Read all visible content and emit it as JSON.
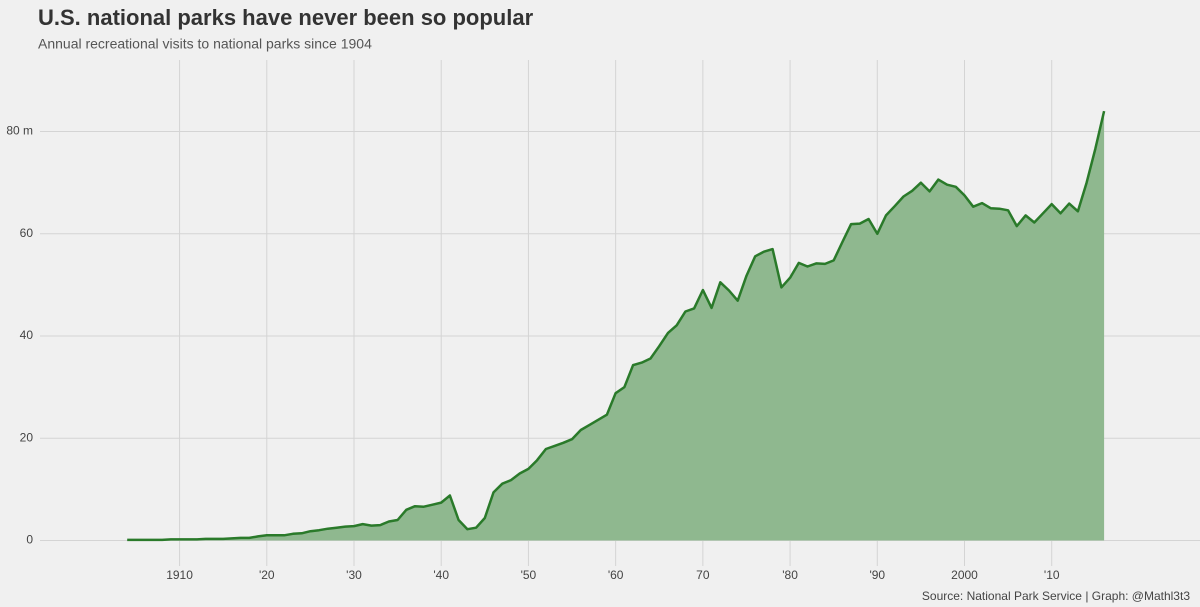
{
  "chart_data": {
    "type": "area",
    "title": "U.S. national parks have never been so popular",
    "subtitle": "Annual recreational visits to national parks since 1904",
    "source": "Source: National Park Service | Graph: @Mathl3t3",
    "x": [
      1904,
      1905,
      1906,
      1907,
      1908,
      1909,
      1910,
      1911,
      1912,
      1913,
      1914,
      1915,
      1916,
      1917,
      1918,
      1919,
      1920,
      1921,
      1922,
      1923,
      1924,
      1925,
      1926,
      1927,
      1928,
      1929,
      1930,
      1931,
      1932,
      1933,
      1934,
      1935,
      1936,
      1937,
      1938,
      1939,
      1940,
      1941,
      1942,
      1943,
      1944,
      1945,
      1946,
      1947,
      1948,
      1949,
      1950,
      1951,
      1952,
      1953,
      1954,
      1955,
      1956,
      1957,
      1958,
      1959,
      1960,
      1961,
      1962,
      1963,
      1964,
      1965,
      1966,
      1967,
      1968,
      1969,
      1970,
      1971,
      1972,
      1973,
      1974,
      1975,
      1976,
      1977,
      1978,
      1979,
      1980,
      1981,
      1982,
      1983,
      1984,
      1985,
      1986,
      1987,
      1988,
      1989,
      1990,
      1991,
      1992,
      1993,
      1994,
      1995,
      1996,
      1997,
      1998,
      1999,
      2000,
      2001,
      2002,
      2003,
      2004,
      2005,
      2006,
      2007,
      2008,
      2009,
      2010,
      2011,
      2012,
      2013,
      2014,
      2015,
      2016
    ],
    "values": [
      0.1,
      0.1,
      0.1,
      0.1,
      0.1,
      0.2,
      0.2,
      0.2,
      0.2,
      0.3,
      0.3,
      0.3,
      0.4,
      0.5,
      0.5,
      0.8,
      1.0,
      1.0,
      1.0,
      1.3,
      1.4,
      1.8,
      2.0,
      2.3,
      2.5,
      2.7,
      2.8,
      3.2,
      2.9,
      3.0,
      3.7,
      4.0,
      6.0,
      6.7,
      6.6,
      7.0,
      7.4,
      8.8,
      4.0,
      2.2,
      2.5,
      4.4,
      9.4,
      11.1,
      11.8,
      13.1,
      14.0,
      15.7,
      17.9,
      18.5,
      19.1,
      19.8,
      21.6,
      22.6,
      23.6,
      24.6,
      28.8,
      30.0,
      34.3,
      34.8,
      35.6,
      38.0,
      40.6,
      42.1,
      44.8,
      45.4,
      49.0,
      45.5,
      50.5,
      48.9,
      46.9,
      51.8,
      55.6,
      56.5,
      57.0,
      49.5,
      51.4,
      54.3,
      53.6,
      54.2,
      54.1,
      54.8,
      58.4,
      61.9,
      62.0,
      62.9,
      60.0,
      63.6,
      65.4,
      67.3,
      68.4,
      70.0,
      68.3,
      70.6,
      69.6,
      69.2,
      67.5,
      65.3,
      66.0,
      65.0,
      64.9,
      64.6,
      61.5,
      63.6,
      62.2,
      64.0,
      65.8,
      64.0,
      65.9,
      64.4,
      70.0,
      76.6,
      84.0
    ],
    "color": "#2a7a2a",
    "fill": "#8fb88f",
    "xlim": [
      1894,
      2027
    ],
    "xticks": [
      {
        "value": 1910,
        "label": "1910"
      },
      {
        "value": 1920,
        "label": "'20"
      },
      {
        "value": 1930,
        "label": "'30"
      },
      {
        "value": 1940,
        "label": "'40"
      },
      {
        "value": 1950,
        "label": "'50"
      },
      {
        "value": 1960,
        "label": "'60"
      },
      {
        "value": 1970,
        "label": "70"
      },
      {
        "value": 1980,
        "label": "'80"
      },
      {
        "value": 1990,
        "label": "'90"
      },
      {
        "value": 2000,
        "label": "2000"
      },
      {
        "value": 2010,
        "label": "'10"
      }
    ],
    "ylim": [
      -5,
      94
    ],
    "yticks": [
      0,
      20,
      40,
      60,
      {
        "value": 80,
        "label": "80 m"
      }
    ],
    "grid": true
  }
}
